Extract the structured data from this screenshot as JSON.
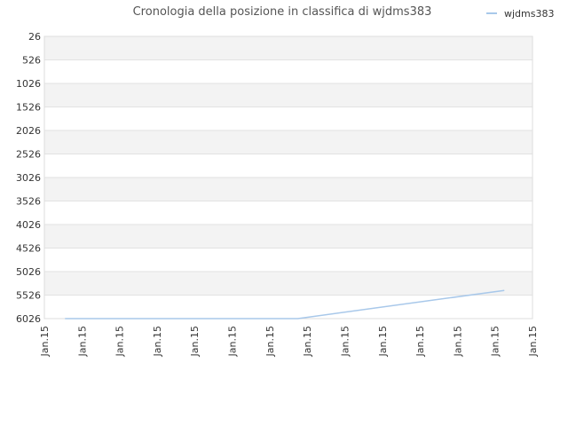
{
  "chart_data": {
    "type": "line",
    "title": "Cronologia della posizione in classifica di wjdms383",
    "xlabel": "",
    "ylabel": "",
    "y_inverted": true,
    "ylim": [
      26,
      6026
    ],
    "y_ticks": [
      "26",
      "526",
      "1026",
      "1526",
      "2026",
      "2526",
      "3026",
      "3526",
      "4026",
      "4526",
      "5026",
      "5526",
      "6026"
    ],
    "x_ticks": [
      "Jan.15",
      "Jan.15",
      "Jan.15",
      "Jan.15",
      "Jan.15",
      "Jan.15",
      "Jan.15",
      "Jan.15",
      "Jan.15",
      "Jan.15",
      "Jan.15",
      "Jan.15",
      "Jan.15",
      "Jan.15"
    ],
    "grid": true,
    "legend_position": "top-right",
    "series": [
      {
        "name": "wjdms383",
        "color": "#a8c8ea",
        "x_ticks_index": [
          0.55,
          6.75,
          12.25
        ],
        "values": [
          6026,
          6026,
          5426
        ]
      }
    ]
  },
  "colors": {
    "band": "#f3f3f3",
    "grid": "#e2e2e2",
    "line": "#a8c8ea"
  }
}
